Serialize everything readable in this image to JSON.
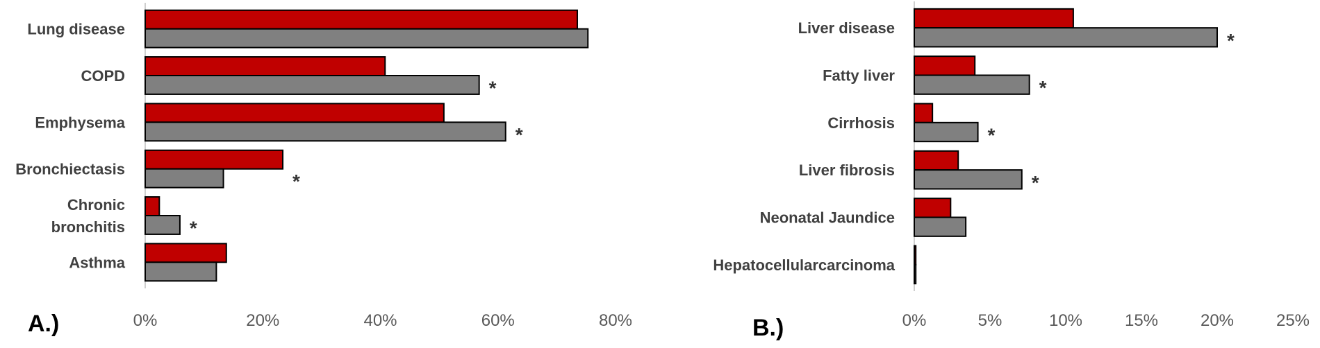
{
  "colors": {
    "series1": "#c00000",
    "series2": "#808080",
    "stroke": "#000000"
  },
  "chart_data": [
    {
      "type": "bar",
      "orientation": "horizontal",
      "panel_label": "A.)",
      "categories": [
        "Lung disease",
        "COPD",
        "Emphysema",
        "Bronchiectasis",
        "Chronic bronchitis",
        "Asthma"
      ],
      "category_lines": [
        [
          "Lung disease"
        ],
        [
          "COPD"
        ],
        [
          "Emphysema"
        ],
        [
          "Bronchiectasis"
        ],
        [
          "Chronic",
          "bronchitis"
        ],
        [
          "Asthma"
        ]
      ],
      "series": [
        {
          "values": [
            73.5,
            40.8,
            50.8,
            23.4,
            2.4,
            13.8
          ]
        },
        {
          "values": [
            75.3,
            56.8,
            61.3,
            13.3,
            5.9,
            12.1
          ]
        }
      ],
      "significant": [
        false,
        true,
        true,
        true,
        true,
        false
      ],
      "significance_marker": "*",
      "xlim": [
        0,
        80
      ],
      "xticks": [
        0,
        20,
        40,
        60,
        80
      ],
      "xtick_labels": [
        "0%",
        "20%",
        "40%",
        "60%",
        "80%"
      ],
      "grid": false
    },
    {
      "type": "bar",
      "orientation": "horizontal",
      "panel_label": "B.)",
      "categories": [
        "Liver disease",
        "Fatty liver",
        "Cirrhosis",
        "Liver fibrosis",
        "Neonatal Jaundice",
        "Hepatocellularcarcinoma"
      ],
      "category_lines": [
        [
          "Liver disease"
        ],
        [
          "Fatty liver"
        ],
        [
          "Cirrhosis"
        ],
        [
          "Liver fibrosis"
        ],
        [
          "Neonatal Jaundice"
        ],
        [
          "Hepatocellularcarcinoma"
        ]
      ],
      "series": [
        {
          "values": [
            10.5,
            4.0,
            1.2,
            2.9,
            2.4,
            0.1
          ]
        },
        {
          "values": [
            20.0,
            7.6,
            4.2,
            7.1,
            3.4,
            0.1
          ]
        }
      ],
      "significant": [
        true,
        true,
        true,
        true,
        false,
        false
      ],
      "significance_marker": "*",
      "xlim": [
        0,
        25
      ],
      "xticks": [
        0,
        5,
        10,
        15,
        20,
        25
      ],
      "xtick_labels": [
        "0%",
        "5%",
        "10%",
        "15%",
        "20%",
        "25%"
      ],
      "grid": false
    }
  ]
}
